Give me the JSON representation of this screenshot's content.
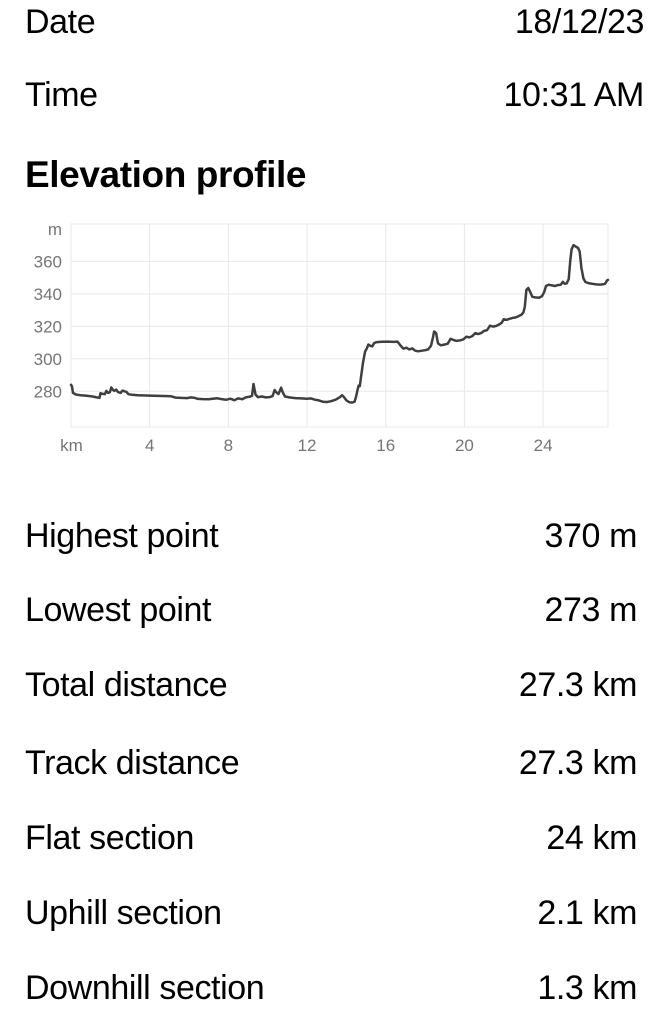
{
  "info": {
    "date_label": "Date",
    "date_value": "18/12/23",
    "time_label": "Time",
    "time_value": "10:31 AM"
  },
  "section": {
    "title": "Elevation profile"
  },
  "chart_data": {
    "type": "line",
    "title": "Elevation profile",
    "xlabel": "km",
    "ylabel": "m",
    "x_unit_label": "km",
    "y_unit_label": "m",
    "x_ticks": [
      4,
      8,
      12,
      16,
      20,
      24
    ],
    "y_ticks": [
      280,
      300,
      320,
      340,
      360
    ],
    "x_range": [
      0,
      27.3
    ],
    "y_range": [
      258,
      383
    ],
    "grid": true,
    "legend": "none",
    "line_color": "#3f3f42",
    "points": [
      [
        0,
        284
      ],
      [
        0.05,
        283
      ],
      [
        0.1,
        279
      ],
      [
        0.25,
        278
      ],
      [
        0.5,
        277.5
      ],
      [
        0.8,
        277.2
      ],
      [
        1.1,
        276.8
      ],
      [
        1.3,
        276.2
      ],
      [
        1.45,
        276
      ],
      [
        1.5,
        278.8
      ],
      [
        1.62,
        278.4
      ],
      [
        1.72,
        278.2
      ],
      [
        1.8,
        280.2
      ],
      [
        1.88,
        279
      ],
      [
        1.98,
        279.4
      ],
      [
        2.05,
        282.4
      ],
      [
        2.12,
        281
      ],
      [
        2.2,
        280.2
      ],
      [
        2.3,
        281
      ],
      [
        2.4,
        279.4
      ],
      [
        2.52,
        279
      ],
      [
        2.62,
        280.4
      ],
      [
        2.72,
        280
      ],
      [
        2.82,
        279.6
      ],
      [
        2.92,
        278.2
      ],
      [
        3.1,
        277.8
      ],
      [
        3.4,
        277.6
      ],
      [
        3.8,
        277.4
      ],
      [
        4.2,
        277.3
      ],
      [
        4.7,
        277.1
      ],
      [
        5.1,
        276.9
      ],
      [
        5.3,
        276.1
      ],
      [
        5.6,
        275.9
      ],
      [
        5.9,
        275.8
      ],
      [
        6.1,
        276.2
      ],
      [
        6.3,
        275.9
      ],
      [
        6.45,
        275.3
      ],
      [
        6.7,
        275.2
      ],
      [
        7,
        275.1
      ],
      [
        7.2,
        275.4
      ],
      [
        7.45,
        275.7
      ],
      [
        7.65,
        275.2
      ],
      [
        7.9,
        274.8
      ],
      [
        8.1,
        275.4
      ],
      [
        8.3,
        274.5
      ],
      [
        8.5,
        275.6
      ],
      [
        8.7,
        275.1
      ],
      [
        8.9,
        276.3
      ],
      [
        9.1,
        276.7
      ],
      [
        9.2,
        277.2
      ],
      [
        9.28,
        284.5
      ],
      [
        9.38,
        278
      ],
      [
        9.5,
        276.4
      ],
      [
        9.7,
        276.8
      ],
      [
        9.9,
        276.2
      ],
      [
        10.1,
        276.4
      ],
      [
        10.25,
        277
      ],
      [
        10.35,
        280.8
      ],
      [
        10.45,
        279.2
      ],
      [
        10.55,
        278.3
      ],
      [
        10.68,
        282.2
      ],
      [
        10.78,
        279
      ],
      [
        10.88,
        276.8
      ],
      [
        11.1,
        276.2
      ],
      [
        11.4,
        275.8
      ],
      [
        11.7,
        275.6
      ],
      [
        12,
        275.4
      ],
      [
        12.2,
        275.6
      ],
      [
        12.4,
        274.8
      ],
      [
        12.6,
        274.4
      ],
      [
        12.8,
        273.6
      ],
      [
        13,
        273.4
      ],
      [
        13.2,
        273.8
      ],
      [
        13.45,
        274.8
      ],
      [
        13.65,
        276.2
      ],
      [
        13.78,
        277.6
      ],
      [
        13.88,
        276.4
      ],
      [
        14,
        274.4
      ],
      [
        14.15,
        273.3
      ],
      [
        14.3,
        273.1
      ],
      [
        14.42,
        273.6
      ],
      [
        14.5,
        277
      ],
      [
        14.56,
        280.5
      ],
      [
        14.62,
        283.5
      ],
      [
        14.68,
        283.2
      ],
      [
        14.76,
        290
      ],
      [
        14.85,
        298
      ],
      [
        14.95,
        304.5
      ],
      [
        15.05,
        306.6
      ],
      [
        15.12,
        308.8
      ],
      [
        15.22,
        308
      ],
      [
        15.32,
        307.6
      ],
      [
        15.42,
        309.8
      ],
      [
        15.55,
        310.3
      ],
      [
        15.8,
        310.5
      ],
      [
        16.1,
        310.6
      ],
      [
        16.4,
        310.4
      ],
      [
        16.6,
        310.6
      ],
      [
        16.75,
        308.2
      ],
      [
        16.9,
        306.2
      ],
      [
        17.05,
        306.8
      ],
      [
        17.2,
        305.8
      ],
      [
        17.35,
        306.4
      ],
      [
        17.5,
        305
      ],
      [
        17.65,
        304.6
      ],
      [
        17.8,
        304.9
      ],
      [
        18,
        305.3
      ],
      [
        18.15,
        305.7
      ],
      [
        18.3,
        308
      ],
      [
        18.4,
        313
      ],
      [
        18.46,
        316.8
      ],
      [
        18.56,
        315.8
      ],
      [
        18.66,
        309.5
      ],
      [
        18.8,
        308.3
      ],
      [
        19,
        308.8
      ],
      [
        19.15,
        309.3
      ],
      [
        19.3,
        312.3
      ],
      [
        19.45,
        311.6
      ],
      [
        19.6,
        311
      ],
      [
        19.8,
        311.4
      ],
      [
        19.95,
        312
      ],
      [
        20.1,
        313.6
      ],
      [
        20.25,
        313.2
      ],
      [
        20.4,
        314
      ],
      [
        20.55,
        315.8
      ],
      [
        20.7,
        315.2
      ],
      [
        20.85,
        315.8
      ],
      [
        21,
        317.2
      ],
      [
        21.15,
        317.6
      ],
      [
        21.3,
        320.4
      ],
      [
        21.45,
        319.8
      ],
      [
        21.6,
        320.2
      ],
      [
        21.75,
        321
      ],
      [
        21.9,
        322.2
      ],
      [
        22,
        324.4
      ],
      [
        22.15,
        324
      ],
      [
        22.3,
        324.6
      ],
      [
        22.45,
        325.2
      ],
      [
        22.6,
        325.4
      ],
      [
        22.75,
        326.2
      ],
      [
        22.9,
        327.2
      ],
      [
        23,
        328.5
      ],
      [
        23.07,
        332
      ],
      [
        23.15,
        342.5
      ],
      [
        23.25,
        343.6
      ],
      [
        23.35,
        341
      ],
      [
        23.45,
        338.2
      ],
      [
        23.6,
        337.8
      ],
      [
        23.8,
        337.6
      ],
      [
        23.95,
        338.6
      ],
      [
        24.05,
        341
      ],
      [
        24.15,
        344.8
      ],
      [
        24.28,
        345.6
      ],
      [
        24.45,
        345.2
      ],
      [
        24.6,
        344.8
      ],
      [
        24.75,
        345.4
      ],
      [
        24.9,
        345.6
      ],
      [
        25,
        347.4
      ],
      [
        25.1,
        346.2
      ],
      [
        25.2,
        346.4
      ],
      [
        25.3,
        349
      ],
      [
        25.38,
        360
      ],
      [
        25.45,
        367.5
      ],
      [
        25.55,
        370
      ],
      [
        25.65,
        369.2
      ],
      [
        25.78,
        368.2
      ],
      [
        25.86,
        366
      ],
      [
        25.95,
        356
      ],
      [
        26.05,
        349.5
      ],
      [
        26.15,
        347.3
      ],
      [
        26.3,
        346.6
      ],
      [
        26.5,
        346.2
      ],
      [
        26.7,
        345.8
      ],
      [
        26.9,
        345.7
      ],
      [
        27.05,
        345.9
      ],
      [
        27.15,
        346.2
      ],
      [
        27.25,
        348.2
      ],
      [
        27.3,
        348.6
      ]
    ]
  },
  "stats": [
    {
      "label": "Highest point",
      "value": "370 m"
    },
    {
      "label": "Lowest point",
      "value": "273 m"
    },
    {
      "label": "Total distance",
      "value": "27.3 km"
    },
    {
      "label": "Track distance",
      "value": "27.3 km"
    },
    {
      "label": "Flat section",
      "value": "24 km"
    },
    {
      "label": "Uphill section",
      "value": "2.1 km"
    },
    {
      "label": "Downhill section",
      "value": "1.3 km"
    }
  ]
}
